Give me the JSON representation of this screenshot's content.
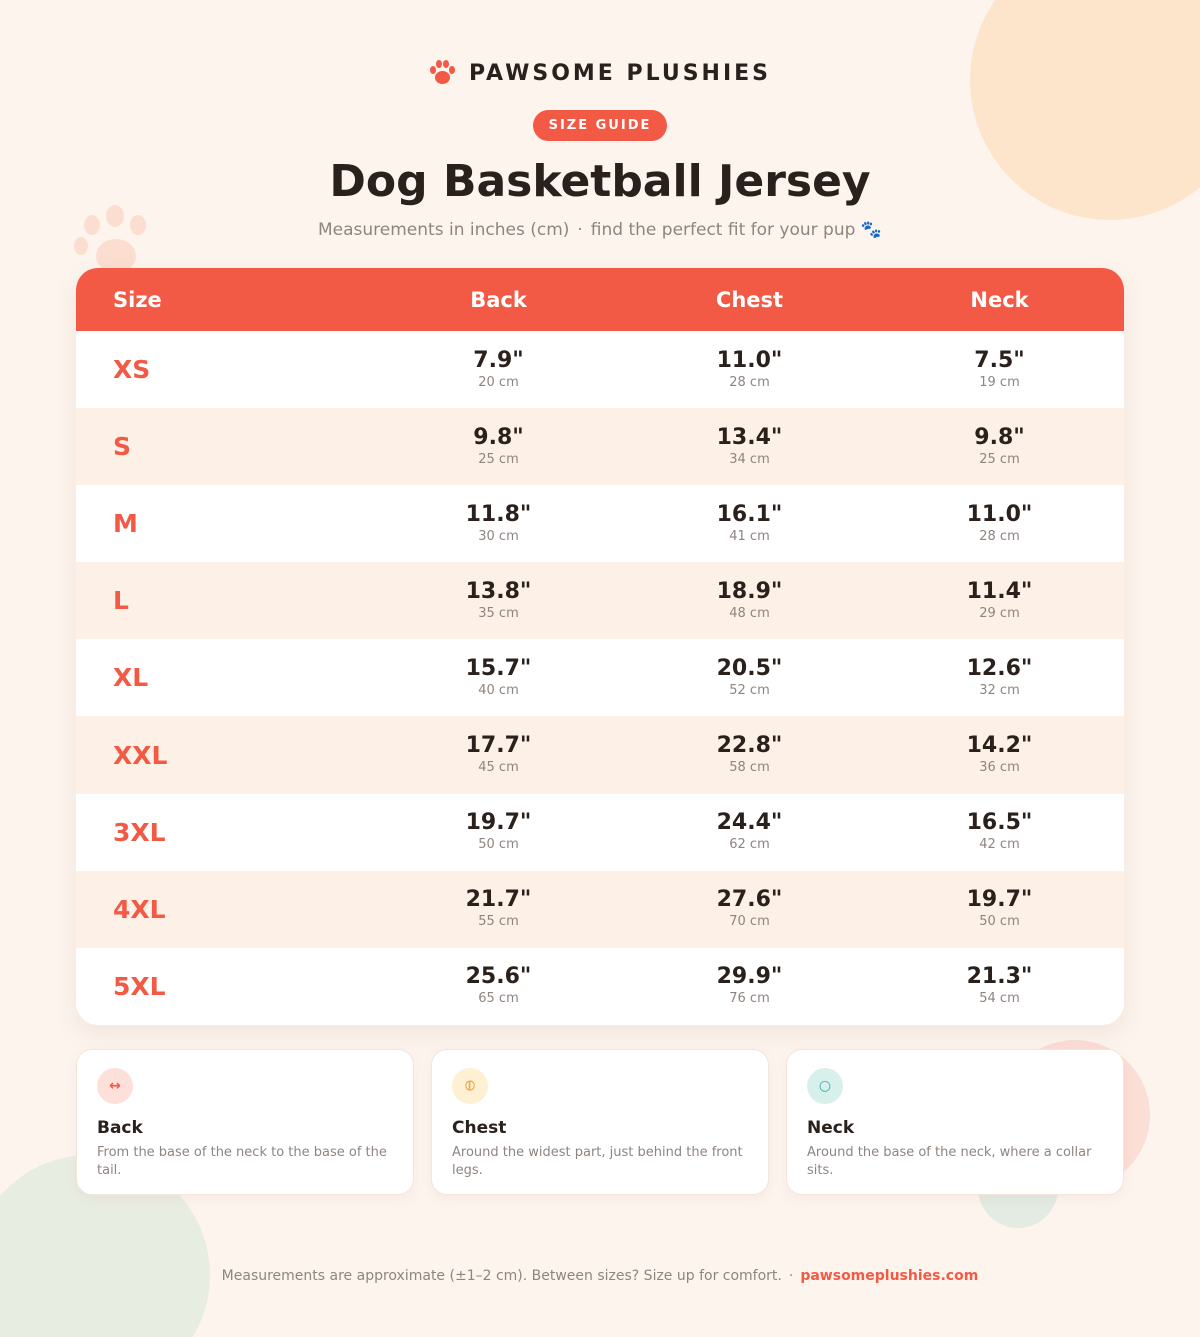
{
  "brand": {
    "name": "PAWSOME PLUSHIES",
    "icon": "paw-icon"
  },
  "badge": "SIZE GUIDE",
  "title": "Dog Basketball Jersey",
  "subtitle": {
    "part1": "Measurements in inches (cm)",
    "separator": "·",
    "part2": "find the perfect fit for your pup 🐾"
  },
  "colors": {
    "accent": "#f25a45",
    "row_alt": "#fdf0e6",
    "background": "#fdf4ee",
    "chest_icon": "#f0a93c",
    "neck_icon": "#2fae9f"
  },
  "table": {
    "headers": {
      "size": "Size",
      "back": "Back",
      "chest": "Chest",
      "neck": "Neck"
    },
    "rows": [
      {
        "size": "XS",
        "back_in": "7.9\"",
        "back_cm": "20 cm",
        "chest_in": "11.0\"",
        "chest_cm": "28 cm",
        "neck_in": "7.5\"",
        "neck_cm": "19 cm"
      },
      {
        "size": "S",
        "back_in": "9.8\"",
        "back_cm": "25 cm",
        "chest_in": "13.4\"",
        "chest_cm": "34 cm",
        "neck_in": "9.8\"",
        "neck_cm": "25 cm"
      },
      {
        "size": "M",
        "back_in": "11.8\"",
        "back_cm": "30 cm",
        "chest_in": "16.1\"",
        "chest_cm": "41 cm",
        "neck_in": "11.0\"",
        "neck_cm": "28 cm"
      },
      {
        "size": "L",
        "back_in": "13.8\"",
        "back_cm": "35 cm",
        "chest_in": "18.9\"",
        "chest_cm": "48 cm",
        "neck_in": "11.4\"",
        "neck_cm": "29 cm"
      },
      {
        "size": "XL",
        "back_in": "15.7\"",
        "back_cm": "40 cm",
        "chest_in": "20.5\"",
        "chest_cm": "52 cm",
        "neck_in": "12.6\"",
        "neck_cm": "32 cm"
      },
      {
        "size": "XXL",
        "back_in": "17.7\"",
        "back_cm": "45 cm",
        "chest_in": "22.8\"",
        "chest_cm": "58 cm",
        "neck_in": "14.2\"",
        "neck_cm": "36 cm"
      },
      {
        "size": "3XL",
        "back_in": "19.7\"",
        "back_cm": "50 cm",
        "chest_in": "24.4\"",
        "chest_cm": "62 cm",
        "neck_in": "16.5\"",
        "neck_cm": "42 cm"
      },
      {
        "size": "4XL",
        "back_in": "21.7\"",
        "back_cm": "55 cm",
        "chest_in": "27.6\"",
        "chest_cm": "70 cm",
        "neck_in": "19.7\"",
        "neck_cm": "50 cm"
      },
      {
        "size": "5XL",
        "back_in": "25.6\"",
        "back_cm": "65 cm",
        "chest_in": "29.9\"",
        "chest_cm": "76 cm",
        "neck_in": "21.3\"",
        "neck_cm": "54 cm"
      }
    ]
  },
  "legend": [
    {
      "icon": "↔",
      "icon_name": "horizontal-arrows-icon",
      "title": "Back",
      "desc": "From the base of the neck to the base of the tail."
    },
    {
      "icon": "⦶",
      "icon_name": "circle-line-icon",
      "title": "Chest",
      "desc": "Around the widest part, just behind the front legs."
    },
    {
      "icon": "○",
      "icon_name": "circle-icon",
      "title": "Neck",
      "desc": "Around the base of the neck, where a collar sits."
    }
  ],
  "footer": {
    "note": "Measurements are approximate (±1–2 cm). Between sizes? Size up for comfort.",
    "separator": "·",
    "site": "pawsomeplushies.com"
  }
}
